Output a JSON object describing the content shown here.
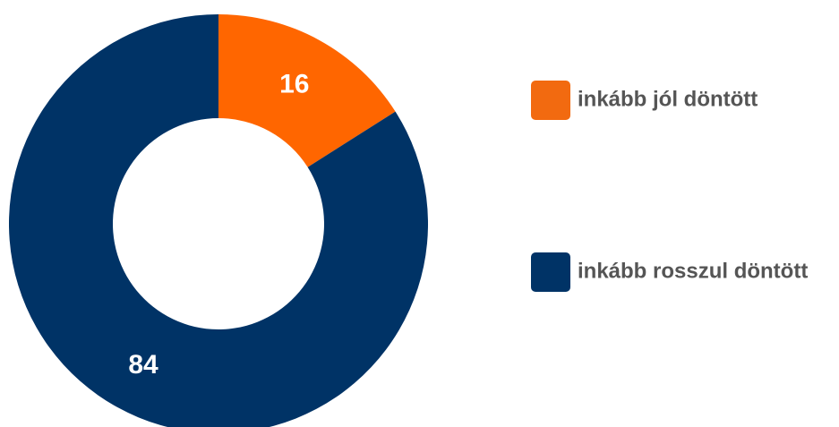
{
  "chart_data": {
    "type": "pie",
    "variant": "donut",
    "categories": [
      "inkább jól döntött",
      "inkább rosszul döntött"
    ],
    "values": [
      16,
      84
    ],
    "colors": [
      "#ff6600",
      "#003366"
    ],
    "legend_swatch_colors": [
      "#f26a10",
      "#003366"
    ],
    "data_labels": [
      "16",
      "84"
    ],
    "legend_position": "right",
    "title": "",
    "show_grid": false
  }
}
